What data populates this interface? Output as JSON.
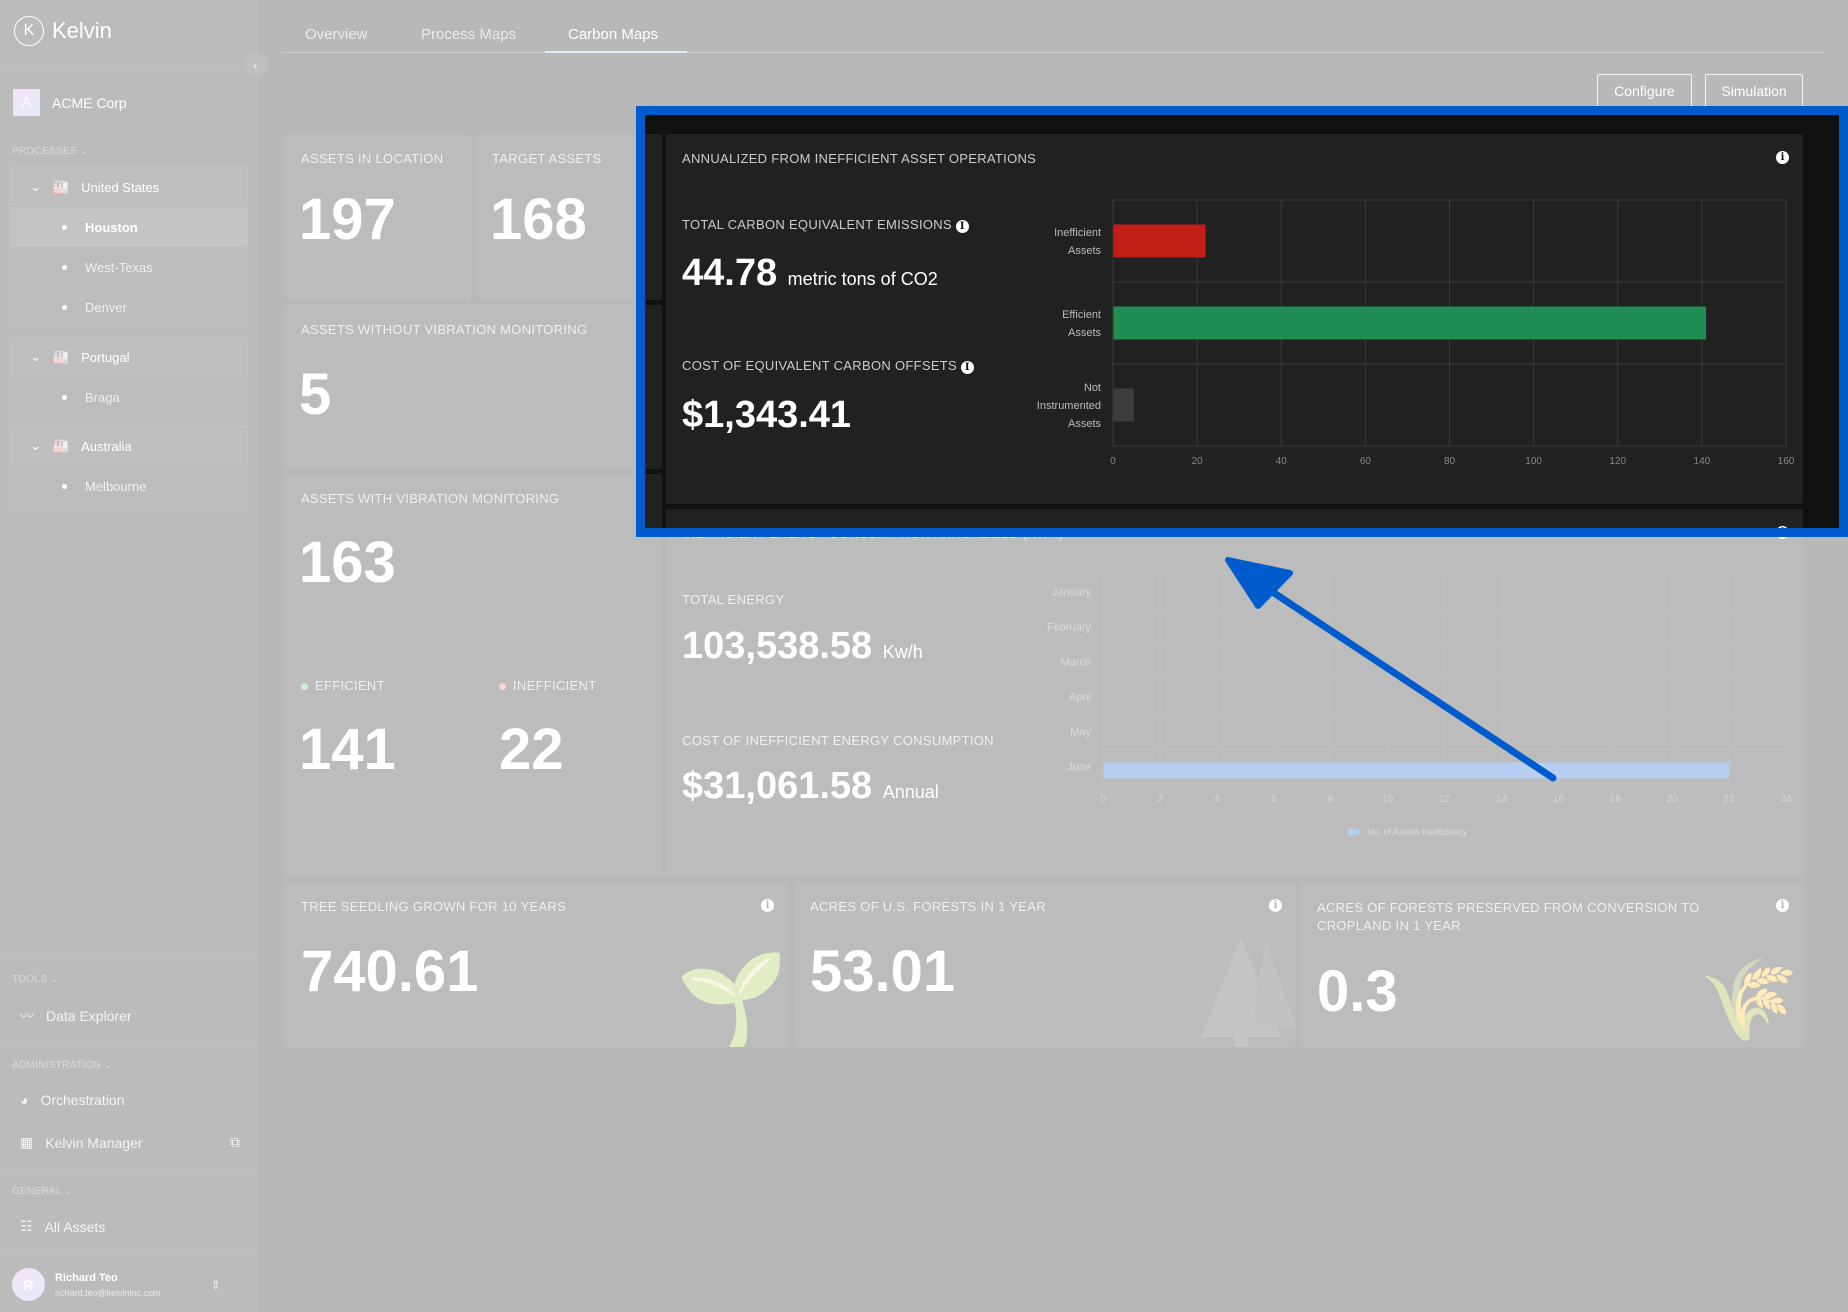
{
  "app": {
    "name": "Kelvin",
    "logo_letter": "K",
    "org_initial": "A",
    "org_name": "ACME Corp"
  },
  "tabs": [
    {
      "label": "Overview"
    },
    {
      "label": "Process Maps"
    },
    {
      "label": "Carbon Maps",
      "active": true
    }
  ],
  "actions": {
    "configure": "Configure",
    "simulation": "Simulation"
  },
  "sidebar": {
    "processes_label": "PROCESSES",
    "groups": [
      {
        "name": "United States",
        "children": [
          "Houston",
          "West-Texas",
          "Denver"
        ],
        "selected": "Houston"
      },
      {
        "name": "Portugal",
        "children": [
          "Braga"
        ]
      },
      {
        "name": "Australia",
        "children": [
          "Melbourne"
        ]
      }
    ],
    "tools_label": "TOOLS",
    "data_explorer": "Data Explorer",
    "admin_label": "ADMINISTRATION",
    "orchestration": "Orchestration",
    "kelvin_manager": "Kelvin Manager",
    "general_label": "GENERAL",
    "all_assets": "All Assets",
    "user": {
      "initial": "R",
      "name": "Richard Teo",
      "email": "richard.teo@kelvininc.com"
    }
  },
  "stats": {
    "assets_in_location": {
      "label": "ASSETS IN LOCATION",
      "value": "197"
    },
    "target_assets": {
      "label": "TARGET ASSETS",
      "value": "168"
    },
    "without_vibration": {
      "label": "ASSETS WITHOUT VIBRATION MONITORING",
      "value": "5"
    },
    "with_vibration": {
      "label": "ASSETS WITH VIBRATION MONITORING",
      "value": "163",
      "efficient_label": "EFFICIENT",
      "efficient_value": "141",
      "inefficient_label": "INEFFICIENT",
      "inefficient_value": "22"
    }
  },
  "carbon": {
    "title": "ANNUALIZED FROM INEFFICIENT ASSET OPERATIONS",
    "emissions_label": "TOTAL CARBON EQUIVALENT EMISSIONS",
    "emissions_value": "44.78",
    "emissions_unit": "metric tons of CO2",
    "offsets_label": "COST OF EQUIVALENT CARBON OFFSETS",
    "offsets_value": "$1,343.41"
  },
  "energy": {
    "title": "INEFFICIENT ENERGY CONSUMPTION ANNUALIZED (KWH)",
    "total_label": "TOTAL ENERGY",
    "total_value": "103,538.58",
    "total_unit": "Kw/h",
    "cost_label": "COST OF INEFFICIENT ENERGY CONSUMPTION",
    "cost_value": "$31,061.58",
    "cost_unit": "Annual"
  },
  "equivalents": [
    {
      "label": "TREE SEEDLING GROWN FOR 10 YEARS",
      "value": "740.61",
      "icon": "seedling-icon"
    },
    {
      "label": "ACRES OF U.S. FORESTS IN 1 YEAR",
      "value": "53.01",
      "icon": "tree-icon"
    },
    {
      "label": "ACRES OF FORESTS PRESERVED FROM CONVERSION TO CROPLAND IN 1 YEAR",
      "value": "0.3",
      "icon": "wheat-icon"
    }
  ],
  "colors": {
    "highlight": "#005ccc",
    "inefficient": "#c21f17",
    "efficient": "#218c53",
    "not_instrumented": "#3d3d3d",
    "energy_bar": "#0a5ccc"
  },
  "chart_data": [
    {
      "type": "bar",
      "orientation": "horizontal",
      "categories": [
        [
          "Inefficient",
          "Assets"
        ],
        [
          "Efficient",
          "Assets"
        ],
        [
          "Not",
          "Instrumented",
          "Assets"
        ]
      ],
      "values": [
        22,
        141,
        5
      ],
      "xlim": [
        0,
        160
      ],
      "xticks": [
        0,
        20,
        40,
        60,
        80,
        100,
        120,
        140,
        160
      ],
      "grid": true
    },
    {
      "type": "bar",
      "orientation": "horizontal",
      "categories": [
        "January",
        "February",
        "March",
        "April",
        "May",
        "June"
      ],
      "series": [
        {
          "name": "No. of Assets Inefficiency",
          "values": [
            0,
            0,
            0,
            0,
            0,
            22
          ]
        }
      ],
      "xlim": [
        0,
        24
      ],
      "xticks": [
        0,
        2,
        4,
        6,
        8,
        10,
        12,
        14,
        16,
        18,
        20,
        22,
        24
      ],
      "grid": true,
      "legend": "bottom"
    }
  ]
}
